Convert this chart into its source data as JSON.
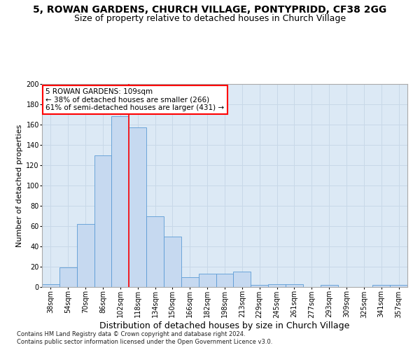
{
  "title": "5, ROWAN GARDENS, CHURCH VILLAGE, PONTYPRIDD, CF38 2GG",
  "subtitle": "Size of property relative to detached houses in Church Village",
  "xlabel": "Distribution of detached houses by size in Church Village",
  "ylabel": "Number of detached properties",
  "footnote1": "Contains HM Land Registry data © Crown copyright and database right 2024.",
  "footnote2": "Contains public sector information licensed under the Open Government Licence v3.0.",
  "categories": [
    "38sqm",
    "54sqm",
    "70sqm",
    "86sqm",
    "102sqm",
    "118sqm",
    "134sqm",
    "150sqm",
    "166sqm",
    "182sqm",
    "198sqm",
    "213sqm",
    "229sqm",
    "245sqm",
    "261sqm",
    "277sqm",
    "293sqm",
    "309sqm",
    "325sqm",
    "341sqm",
    "357sqm"
  ],
  "bar_heights": [
    3,
    19,
    62,
    130,
    168,
    157,
    70,
    50,
    10,
    13,
    13,
    15,
    2,
    3,
    3,
    0,
    2,
    0,
    0,
    2,
    2
  ],
  "bar_color": "#c6d9f0",
  "bar_edge_color": "#5b9bd5",
  "vline_color": "red",
  "vline_linewidth": 1.2,
  "annotation_line1": "5 ROWAN GARDENS: 109sqm",
  "annotation_line2": "← 38% of detached houses are smaller (266)",
  "annotation_line3": "61% of semi-detached houses are larger (431) →",
  "annotation_box_color": "white",
  "annotation_box_edgecolor": "red",
  "ylim": [
    0,
    200
  ],
  "yticks": [
    0,
    20,
    40,
    60,
    80,
    100,
    120,
    140,
    160,
    180,
    200
  ],
  "grid_color": "#c8d8e8",
  "background_color": "#dce9f5",
  "title_fontsize": 10,
  "subtitle_fontsize": 9,
  "xlabel_fontsize": 9,
  "ylabel_fontsize": 8,
  "tick_fontsize": 7,
  "annotation_fontsize": 7.5,
  "footnote_fontsize": 6
}
